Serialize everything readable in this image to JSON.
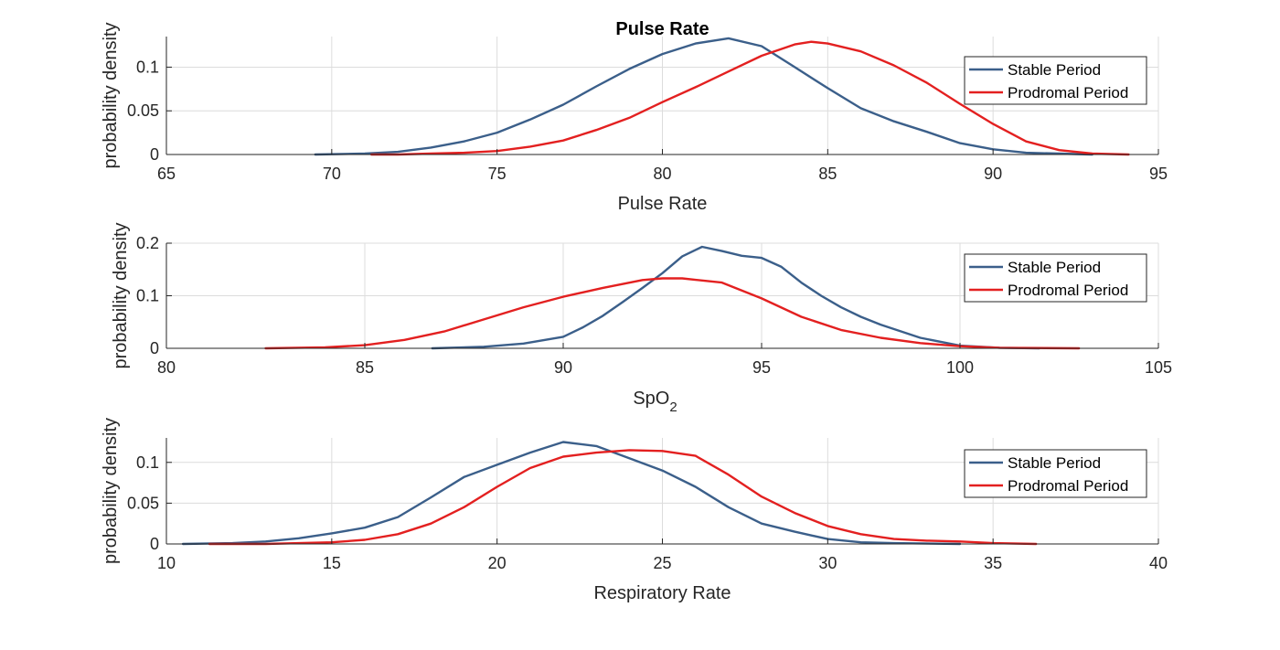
{
  "chart_data": [
    {
      "type": "line",
      "title": "Pulse Rate",
      "xlabel": "Pulse Rate",
      "ylabel": "probability density",
      "xlim": [
        65,
        95
      ],
      "ylim": [
        0,
        0.135
      ],
      "xticks": [
        65,
        70,
        75,
        80,
        85,
        90,
        95
      ],
      "xtick_labels": [
        "65",
        "70",
        "75",
        "80",
        "85",
        "90",
        "95"
      ],
      "yticks": [
        0,
        0.05,
        0.1
      ],
      "ytick_labels": [
        "0",
        "0.05",
        "0.1"
      ],
      "grid": true,
      "legend_position": "top-right",
      "series": [
        {
          "name": "Stable Period",
          "color": "#3b5f8a",
          "points": [
            [
              69.5,
              0
            ],
            [
              71,
              0.001
            ],
            [
              72,
              0.003
            ],
            [
              73,
              0.008
            ],
            [
              74,
              0.015
            ],
            [
              75,
              0.025
            ],
            [
              76,
              0.04
            ],
            [
              77,
              0.057
            ],
            [
              78,
              0.078
            ],
            [
              79,
              0.098
            ],
            [
              80,
              0.115
            ],
            [
              81,
              0.127
            ],
            [
              82,
              0.133
            ],
            [
              83,
              0.124
            ],
            [
              84,
              0.1
            ],
            [
              85,
              0.076
            ],
            [
              86,
              0.053
            ],
            [
              87,
              0.038
            ],
            [
              88,
              0.026
            ],
            [
              89,
              0.013
            ],
            [
              90,
              0.006
            ],
            [
              91,
              0.002
            ],
            [
              92,
              0.001
            ],
            [
              93,
              0
            ]
          ]
        },
        {
          "name": "Prodromal Period",
          "color": "#e32020",
          "points": [
            [
              71.2,
              0
            ],
            [
              72,
              0
            ],
            [
              73,
              0.001
            ],
            [
              74,
              0.002
            ],
            [
              75,
              0.004
            ],
            [
              76,
              0.009
            ],
            [
              77,
              0.016
            ],
            [
              78,
              0.028
            ],
            [
              79,
              0.042
            ],
            [
              80,
              0.06
            ],
            [
              81,
              0.077
            ],
            [
              82,
              0.095
            ],
            [
              83,
              0.113
            ],
            [
              84,
              0.126
            ],
            [
              84.5,
              0.129
            ],
            [
              85,
              0.127
            ],
            [
              86,
              0.118
            ],
            [
              87,
              0.102
            ],
            [
              88,
              0.082
            ],
            [
              89,
              0.058
            ],
            [
              90,
              0.035
            ],
            [
              91,
              0.015
            ],
            [
              92,
              0.005
            ],
            [
              93,
              0.001
            ],
            [
              94.1,
              0
            ]
          ]
        }
      ]
    },
    {
      "type": "line",
      "title": "",
      "xlabel": "SpO2",
      "xlabel_main": "SpO",
      "xlabel_sub": "2",
      "ylabel": "probability density",
      "xlim": [
        80,
        105
      ],
      "ylim": [
        0,
        0.2
      ],
      "xticks": [
        80,
        85,
        90,
        95,
        100,
        105
      ],
      "xtick_labels": [
        "80",
        "85",
        "90",
        "95",
        "100",
        "105"
      ],
      "yticks": [
        0,
        0.1,
        0.2
      ],
      "ytick_labels": [
        "0",
        "0.1",
        "0.2"
      ],
      "grid": true,
      "legend_position": "top-right",
      "series": [
        {
          "name": "Stable Period",
          "color": "#3b5f8a",
          "points": [
            [
              86.7,
              0
            ],
            [
              88,
              0.003
            ],
            [
              89,
              0.009
            ],
            [
              90,
              0.022
            ],
            [
              90.5,
              0.04
            ],
            [
              91,
              0.062
            ],
            [
              91.5,
              0.088
            ],
            [
              92,
              0.115
            ],
            [
              92.5,
              0.143
            ],
            [
              93,
              0.175
            ],
            [
              93.5,
              0.193
            ],
            [
              94,
              0.185
            ],
            [
              94.5,
              0.176
            ],
            [
              95,
              0.172
            ],
            [
              95.5,
              0.155
            ],
            [
              96,
              0.125
            ],
            [
              96.5,
              0.1
            ],
            [
              97,
              0.078
            ],
            [
              97.5,
              0.06
            ],
            [
              98,
              0.045
            ],
            [
              99,
              0.02
            ],
            [
              100,
              0.005
            ],
            [
              101,
              0.001
            ],
            [
              102,
              0
            ]
          ]
        },
        {
          "name": "Prodromal Period",
          "color": "#e32020",
          "points": [
            [
              82.5,
              0
            ],
            [
              84,
              0.002
            ],
            [
              85,
              0.006
            ],
            [
              86,
              0.016
            ],
            [
              87,
              0.032
            ],
            [
              88,
              0.055
            ],
            [
              89,
              0.078
            ],
            [
              90,
              0.098
            ],
            [
              91,
              0.115
            ],
            [
              92,
              0.13
            ],
            [
              92.5,
              0.133
            ],
            [
              93,
              0.133
            ],
            [
              94,
              0.125
            ],
            [
              95,
              0.095
            ],
            [
              96,
              0.06
            ],
            [
              97,
              0.035
            ],
            [
              98,
              0.02
            ],
            [
              99,
              0.01
            ],
            [
              100,
              0.004
            ],
            [
              101,
              0.001
            ],
            [
              103,
              0
            ]
          ]
        }
      ]
    },
    {
      "type": "line",
      "title": "",
      "xlabel": "Respiratory Rate",
      "ylabel": "probability density",
      "xlim": [
        10,
        40
      ],
      "ylim": [
        0,
        0.13
      ],
      "xticks": [
        10,
        15,
        20,
        25,
        30,
        35,
        40
      ],
      "xtick_labels": [
        "10",
        "15",
        "20",
        "25",
        "30",
        "35",
        "40"
      ],
      "yticks": [
        0,
        0.05,
        0.1
      ],
      "ytick_labels": [
        "0",
        "0.05",
        "0.1"
      ],
      "grid": true,
      "legend_position": "top-right",
      "series": [
        {
          "name": "Stable Period",
          "color": "#3b5f8a",
          "points": [
            [
              10.5,
              0
            ],
            [
              12,
              0.001
            ],
            [
              13,
              0.003
            ],
            [
              14,
              0.007
            ],
            [
              15,
              0.013
            ],
            [
              16,
              0.02
            ],
            [
              17,
              0.033
            ],
            [
              18,
              0.057
            ],
            [
              19,
              0.082
            ],
            [
              20,
              0.097
            ],
            [
              21,
              0.112
            ],
            [
              22,
              0.125
            ],
            [
              23,
              0.12
            ],
            [
              24,
              0.105
            ],
            [
              25,
              0.09
            ],
            [
              26,
              0.07
            ],
            [
              27,
              0.045
            ],
            [
              28,
              0.025
            ],
            [
              29,
              0.015
            ],
            [
              30,
              0.006
            ],
            [
              31,
              0.002
            ],
            [
              32,
              0.001
            ],
            [
              34,
              0
            ]
          ]
        },
        {
          "name": "Prodromal Period",
          "color": "#e32020",
          "points": [
            [
              11.3,
              0
            ],
            [
              13,
              0
            ],
            [
              14,
              0.001
            ],
            [
              15,
              0.002
            ],
            [
              16,
              0.005
            ],
            [
              17,
              0.012
            ],
            [
              18,
              0.025
            ],
            [
              19,
              0.045
            ],
            [
              20,
              0.07
            ],
            [
              21,
              0.093
            ],
            [
              22,
              0.107
            ],
            [
              23,
              0.112
            ],
            [
              24,
              0.115
            ],
            [
              25,
              0.114
            ],
            [
              26,
              0.108
            ],
            [
              27,
              0.085
            ],
            [
              28,
              0.058
            ],
            [
              29,
              0.038
            ],
            [
              30,
              0.022
            ],
            [
              31,
              0.012
            ],
            [
              32,
              0.006
            ],
            [
              33,
              0.004
            ],
            [
              34,
              0.003
            ],
            [
              35,
              0.001
            ],
            [
              36.3,
              0
            ]
          ]
        }
      ]
    }
  ]
}
